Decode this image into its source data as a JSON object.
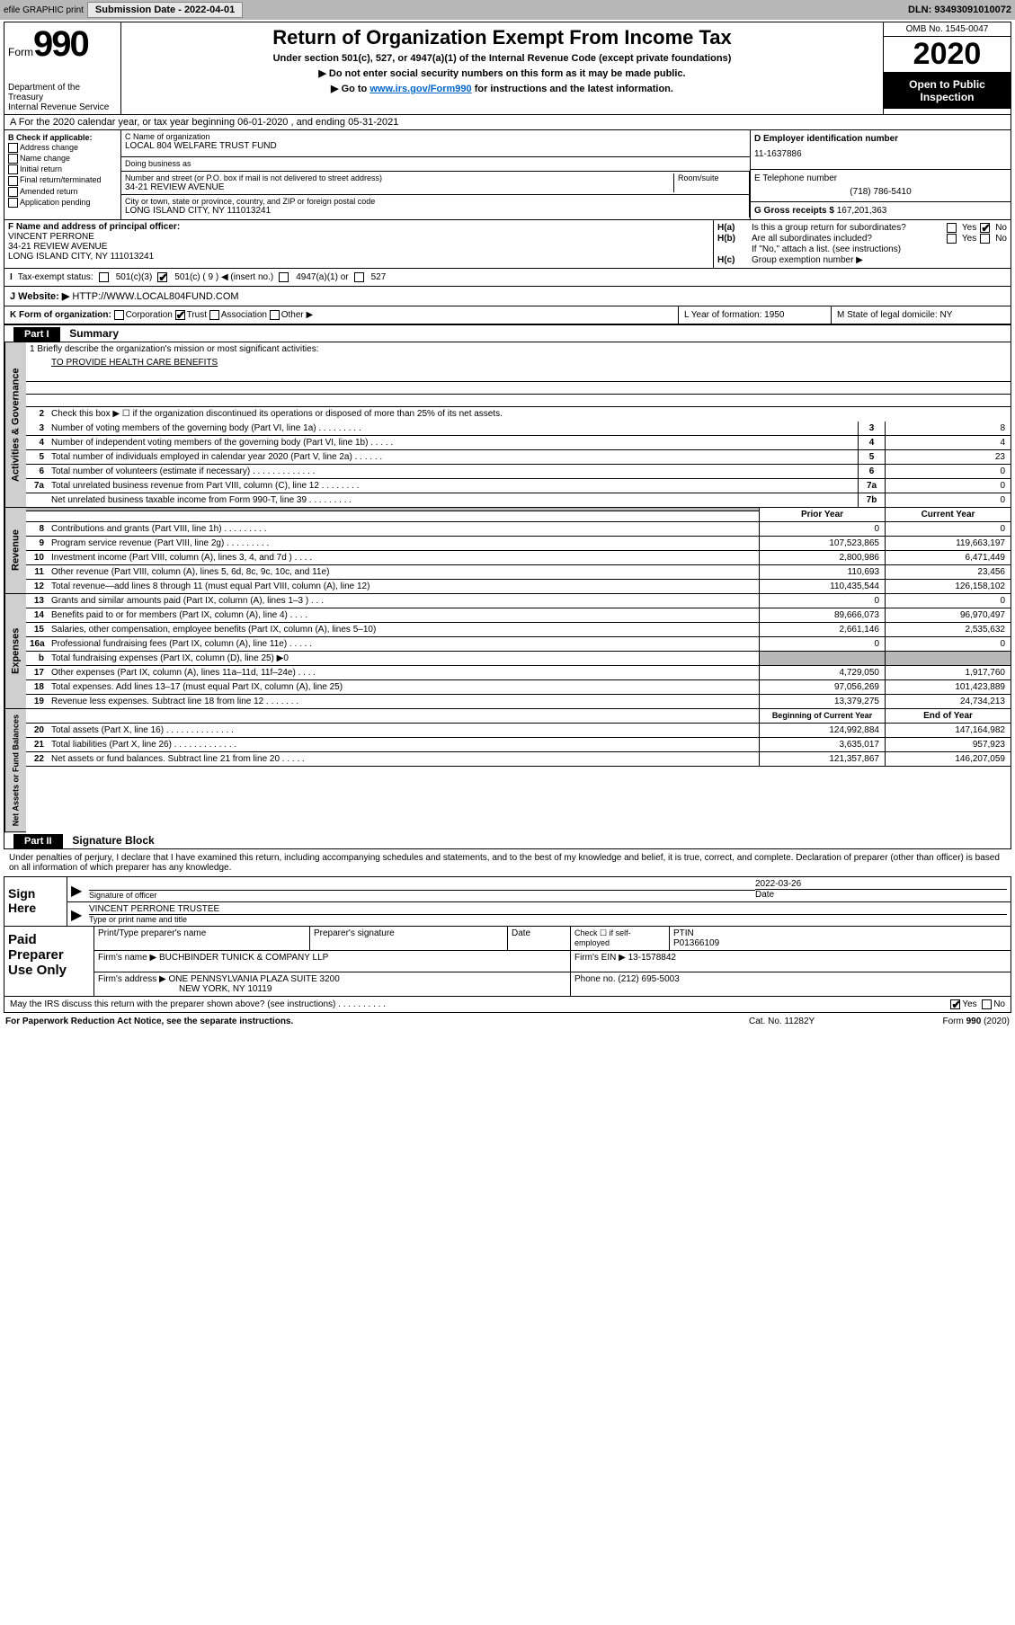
{
  "topbar": {
    "efile": "efile GRAPHIC print",
    "submission_label": "Submission Date - 2022-04-01",
    "dln": "DLN: 93493091010072"
  },
  "header": {
    "form_prefix": "Form",
    "form_no": "990",
    "dept": "Department of the Treasury\nInternal Revenue Service",
    "title": "Return of Organization Exempt From Income Tax",
    "sub1": "Under section 501(c), 527, or 4947(a)(1) of the Internal Revenue Code (except private foundations)",
    "sub2": "▶ Do not enter social security numbers on this form as it may be made public.",
    "sub3_a": "▶ Go to ",
    "sub3_link": "www.irs.gov/Form990",
    "sub3_b": " for instructions and the latest information.",
    "omb": "OMB No. 1545-0047",
    "year": "2020",
    "inspect": "Open to Public Inspection"
  },
  "row_a": "A For the 2020 calendar year, or tax year beginning 06-01-2020     , and ending 05-31-2021",
  "section_b": {
    "label": "B Check if applicable:",
    "items": [
      "Address change",
      "Name change",
      "Initial return",
      "Final return/terminated",
      "Amended return",
      "Application pending"
    ]
  },
  "section_c": {
    "name_label": "C Name of organization",
    "name": "LOCAL 804 WELFARE TRUST FUND",
    "dba_label": "Doing business as",
    "addr_label": "Number and street (or P.O. box if mail is not delivered to street address)",
    "addr": "34-21 REVIEW AVENUE",
    "room_label": "Room/suite",
    "city_label": "City or town, state or province, country, and ZIP or foreign postal code",
    "city": "LONG ISLAND CITY, NY  111013241"
  },
  "section_d": {
    "label": "D Employer identification number",
    "value": "11-1637886"
  },
  "section_e": {
    "label": "E Telephone number",
    "value": "(718) 786-5410"
  },
  "section_g": {
    "label": "G Gross receipts $",
    "value": "167,201,363"
  },
  "section_f": {
    "label": "F  Name and address of principal officer:",
    "name": "VINCENT PERRONE",
    "addr1": "34-21 REVIEW AVENUE",
    "addr2": "LONG ISLAND CITY, NY  111013241"
  },
  "section_h": {
    "ha": "Is this a group return for subordinates?",
    "hb": "Are all subordinates included?",
    "note": "If \"No,\" attach a list. (see instructions)",
    "hc": "Group exemption number ▶"
  },
  "tax_exempt": {
    "label": "Tax-exempt status:",
    "o1": "501(c)(3)",
    "o2": "501(c) ( 9 ) ◀ (insert no.)",
    "o3": "4947(a)(1) or",
    "o4": "527"
  },
  "website": {
    "label": "J   Website: ▶",
    "value": "HTTP://WWW.LOCAL804FUND.COM"
  },
  "row_k": {
    "k": "K Form of organization:",
    "opts": [
      "Corporation",
      "Trust",
      "Association",
      "Other ▶"
    ],
    "l": "L Year of formation: 1950",
    "m": "M State of legal domicile: NY"
  },
  "part1": {
    "header": "Part I",
    "title": "Summary"
  },
  "mission": {
    "line1": "1   Briefly describe the organization's mission or most significant activities:",
    "text": "TO PROVIDE HEALTH CARE BENEFITS"
  },
  "line2": "Check this box ▶ ☐  if the organization discontinued its operations or disposed of more than 25% of its net assets.",
  "gov_lines": [
    {
      "n": "3",
      "t": "Number of voting members of the governing body (Part VI, line 1a)   .    .    .    .    .    .    .    .    .",
      "b": "3",
      "v": "8"
    },
    {
      "n": "4",
      "t": "Number of independent voting members of the governing body (Part VI, line 1b)   .    .    .    .    .",
      "b": "4",
      "v": "4"
    },
    {
      "n": "5",
      "t": "Total number of individuals employed in calendar year 2020 (Part V, line 2a)    .    .    .    .    .    .",
      "b": "5",
      "v": "23"
    },
    {
      "n": "6",
      "t": "Total number of volunteers (estimate if necessary)     .    .    .    .    .    .    .    .    .    .    .    .    .",
      "b": "6",
      "v": "0"
    },
    {
      "n": "7a",
      "t": "Total unrelated business revenue from Part VIII, column (C), line 12   .    .    .    .    .    .    .    .",
      "b": "7a",
      "v": "0"
    },
    {
      "n": "",
      "t": "Net unrelated business taxable income from Form 990-T, line 39    .    .    .    .    .    .    .    .    .",
      "b": "7b",
      "v": "0"
    }
  ],
  "col_headers": {
    "prior": "Prior Year",
    "current": "Current Year"
  },
  "revenue_lines": [
    {
      "n": "8",
      "t": "Contributions and grants (Part VIII, line 1h)   .    .    .    .    .    .    .    .    .",
      "p": "0",
      "c": "0"
    },
    {
      "n": "9",
      "t": "Program service revenue (Part VIII, line 2g)    .    .    .    .    .    .    .    .    .",
      "p": "107,523,865",
      "c": "119,663,197"
    },
    {
      "n": "10",
      "t": "Investment income (Part VIII, column (A), lines 3, 4, and 7d )   .    .    .    .",
      "p": "2,800,986",
      "c": "6,471,449"
    },
    {
      "n": "11",
      "t": "Other revenue (Part VIII, column (A), lines 5, 6d, 8c, 9c, 10c, and 11e)",
      "p": "110,693",
      "c": "23,456"
    },
    {
      "n": "12",
      "t": "Total revenue—add lines 8 through 11 (must equal Part VIII, column (A), line 12)",
      "p": "110,435,544",
      "c": "126,158,102"
    }
  ],
  "expense_lines": [
    {
      "n": "13",
      "t": "Grants and similar amounts paid (Part IX, column (A), lines 1–3 )    .    .    .",
      "p": "0",
      "c": "0"
    },
    {
      "n": "14",
      "t": "Benefits paid to or for members (Part IX, column (A), line 4)    .    .    .    .",
      "p": "89,666,073",
      "c": "96,970,497"
    },
    {
      "n": "15",
      "t": "Salaries, other compensation, employee benefits (Part IX, column (A), lines 5–10)",
      "p": "2,661,146",
      "c": "2,535,632"
    },
    {
      "n": "16a",
      "t": "Professional fundraising fees (Part IX, column (A), line 11e)    .    .    .    .    .",
      "p": "0",
      "c": "0"
    },
    {
      "n": "b",
      "t": "Total fundraising expenses (Part IX, column (D), line 25) ▶0",
      "p": "",
      "c": "",
      "shaded": true
    },
    {
      "n": "17",
      "t": "Other expenses (Part IX, column (A), lines 11a–11d, 11f–24e)    .    .    .    .",
      "p": "4,729,050",
      "c": "1,917,760"
    },
    {
      "n": "18",
      "t": "Total expenses. Add lines 13–17 (must equal Part IX, column (A), line 25)",
      "p": "97,056,269",
      "c": "101,423,889"
    },
    {
      "n": "19",
      "t": "Revenue less expenses. Subtract line 18 from line 12   .    .    .    .    .    .    .",
      "p": "13,379,275",
      "c": "24,734,213"
    }
  ],
  "na_headers": {
    "begin": "Beginning of Current Year",
    "end": "End of Year"
  },
  "na_lines": [
    {
      "n": "20",
      "t": "Total assets (Part X, line 16)   .    .    .    .    .    .    .    .    .    .    .    .    .    .",
      "p": "124,992,884",
      "c": "147,164,982"
    },
    {
      "n": "21",
      "t": "Total liabilities (Part X, line 26)   .    .    .    .    .    .    .    .    .    .    .    .    .",
      "p": "3,635,017",
      "c": "957,923"
    },
    {
      "n": "22",
      "t": "Net assets or fund balances. Subtract line 21 from line 20   .    .    .    .    .",
      "p": "121,357,867",
      "c": "146,207,059"
    }
  ],
  "side_labels": {
    "gov": "Activities & Governance",
    "rev": "Revenue",
    "exp": "Expenses",
    "na": "Net Assets or Fund Balances"
  },
  "part2": {
    "header": "Part II",
    "title": "Signature Block"
  },
  "sig": {
    "perjury": "Under penalties of perjury, I declare that I have examined this return, including accompanying schedules and statements, and to the best of my knowledge and belief, it is true, correct, and complete. Declaration of preparer (other than officer) is based on all information of which preparer has any knowledge.",
    "sign_here": "Sign Here",
    "officer_label": "Signature of officer",
    "date_label": "Date",
    "date": "2022-03-26",
    "name": "VINCENT PERRONE  TRUSTEE",
    "name_label": "Type or print name and title"
  },
  "prep": {
    "label": "Paid Preparer Use Only",
    "h1": "Print/Type preparer's name",
    "h2": "Preparer's signature",
    "h3": "Date",
    "h4_a": "Check ☐ if self-employed",
    "h5": "PTIN",
    "ptin": "P01366109",
    "firm_label": "Firm's name    ▶",
    "firm": "BUCHBINDER TUNICK & COMPANY LLP",
    "ein_label": "Firm's EIN ▶",
    "ein": "13-1578842",
    "addr_label": "Firm's address ▶",
    "addr1": "ONE PENNSYLVANIA PLAZA SUITE 3200",
    "addr2": "NEW YORK, NY  10119",
    "phone_label": "Phone no.",
    "phone": "(212) 695-5003",
    "discuss": "May the IRS discuss this return with the preparer shown above? (see instructions)    .    .    .    .    .    .    .    .    .    ."
  },
  "footer": {
    "notice": "For Paperwork Reduction Act Notice, see the separate instructions.",
    "cat": "Cat. No. 11282Y",
    "form": "Form 990 (2020)"
  }
}
